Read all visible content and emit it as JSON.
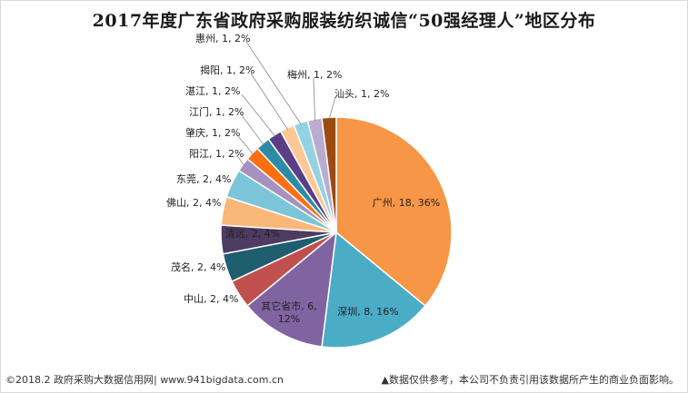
{
  "chart_data": {
    "type": "pie",
    "title": "2017年度广东省政府采购服装纺织诚信“50强经理人”地区分布",
    "slices": [
      {
        "name": "广州",
        "value": 18,
        "percent": "36%",
        "color": "#f79646"
      },
      {
        "name": "深圳",
        "value": 8,
        "percent": "16%",
        "color": "#4bacc6"
      },
      {
        "name": "其它省市",
        "value": 6,
        "percent": "12%",
        "color": "#8064a2"
      },
      {
        "name": "中山",
        "value": 2,
        "percent": "4%",
        "color": "#c0504d"
      },
      {
        "name": "茂名",
        "value": 2,
        "percent": "4%",
        "color": "#1f5e6e"
      },
      {
        "name": "清远",
        "value": 2,
        "percent": "4%",
        "color": "#4d3b62"
      },
      {
        "name": "佛山",
        "value": 2,
        "percent": "4%",
        "color": "#fab77a"
      },
      {
        "name": "东莞",
        "value": 2,
        "percent": "4%",
        "color": "#7cc5d8"
      },
      {
        "name": "阳江",
        "value": 1,
        "percent": "2%",
        "color": "#a592c0"
      },
      {
        "name": "肇庆",
        "value": 1,
        "percent": "2%",
        "color": "#ff6e10"
      },
      {
        "name": "江门",
        "value": 1,
        "percent": "2%",
        "color": "#2d8ba6"
      },
      {
        "name": "湛江",
        "value": 1,
        "percent": "2%",
        "color": "#5a3f86"
      },
      {
        "name": "揭阳",
        "value": 1,
        "percent": "2%",
        "color": "#fcc896"
      },
      {
        "name": "惠州",
        "value": 1,
        "percent": "2%",
        "color": "#93d2e2"
      },
      {
        "name": "梅州",
        "value": 1,
        "percent": "2%",
        "color": "#b9acd0"
      },
      {
        "name": "汕头",
        "value": 1,
        "percent": "2%",
        "color": "#9c4a0f"
      }
    ],
    "legend": "none"
  },
  "footer": {
    "source": "©2018.2 政府采购大数据信用网| www.941bigdata.com.cn",
    "disclaimer": "▲数据仅供参考，本公司不负责引用该数据所产生的商业负面影响。"
  }
}
